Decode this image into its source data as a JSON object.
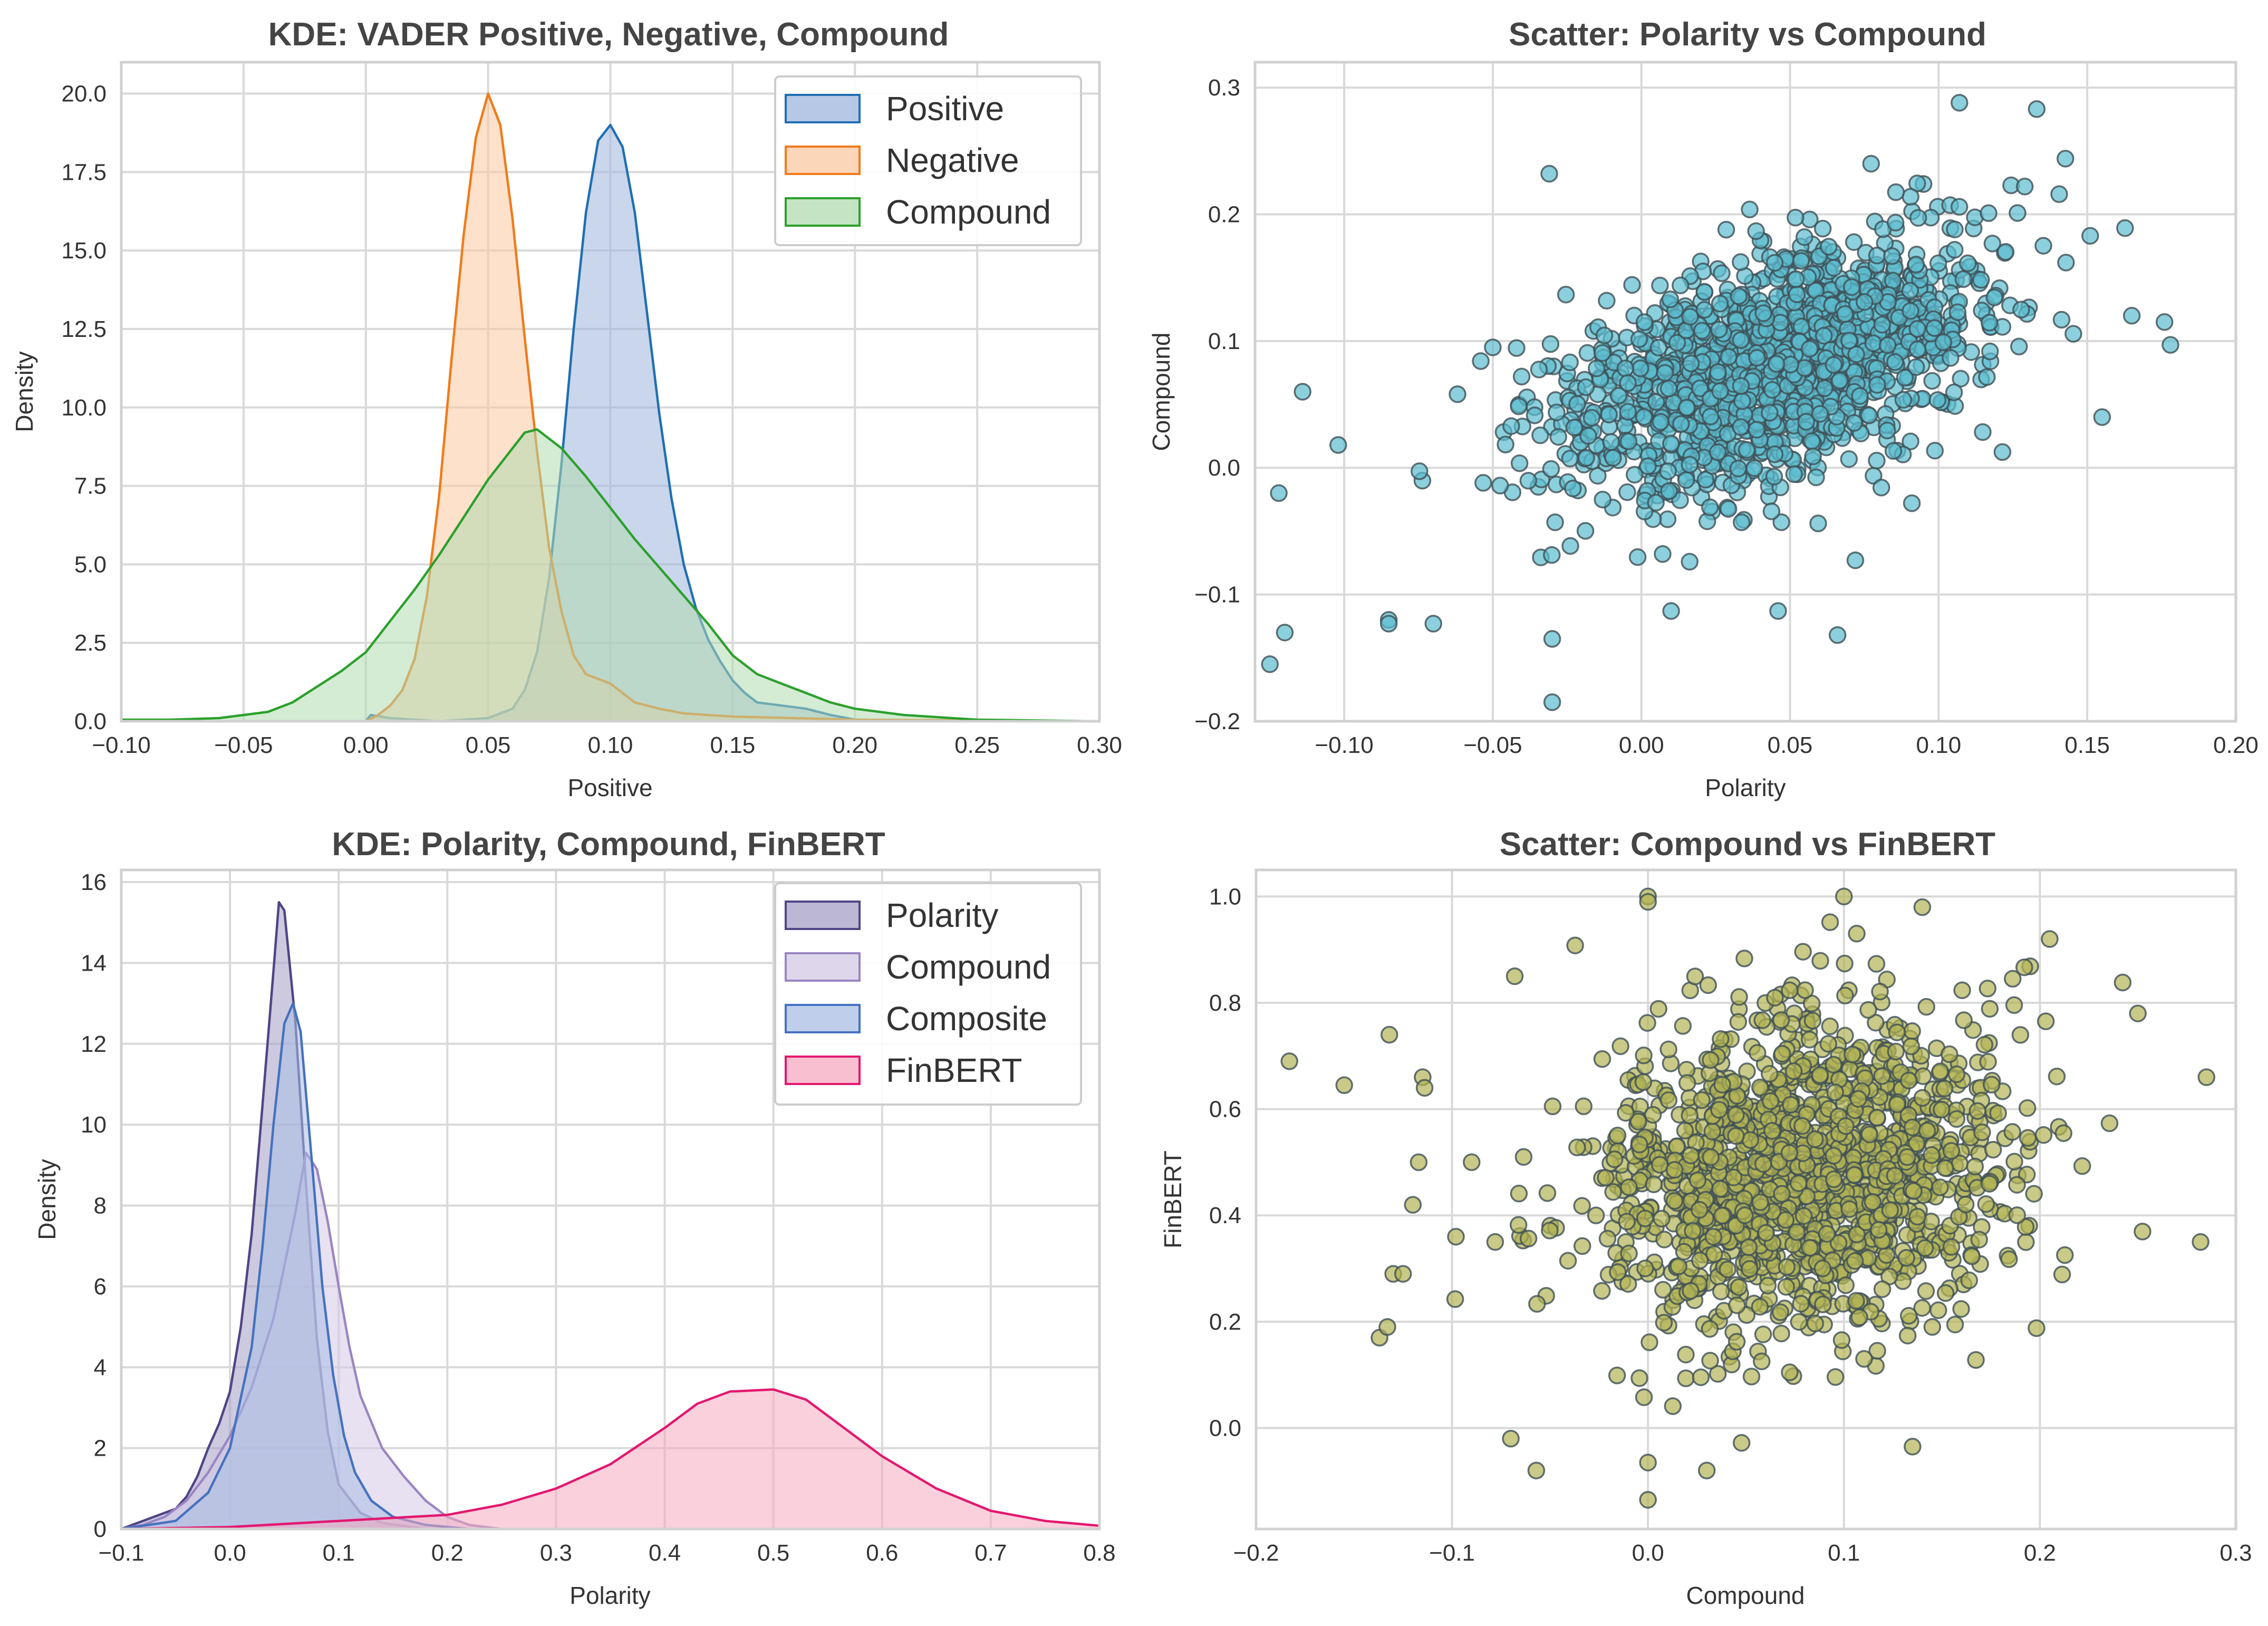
{
  "chart_data": [
    {
      "type": "area",
      "kind": "kde",
      "title": "KDE: VADER Positive, Negative, Compound",
      "xlabel": "Positive",
      "ylabel": "Density",
      "xlim": [
        -0.1,
        0.3
      ],
      "ylim": [
        0,
        21
      ],
      "xticks": [
        -0.1,
        -0.05,
        0.0,
        0.05,
        0.1,
        0.15,
        0.2,
        0.25,
        0.3
      ],
      "xtick_labels": [
        "−0.10",
        "−0.05",
        "0.00",
        "0.05",
        "0.10",
        "0.15",
        "0.20",
        "0.25",
        "0.30"
      ],
      "yticks": [
        0,
        2.5,
        5,
        7.5,
        10,
        12.5,
        15,
        17.5,
        20
      ],
      "ytick_labels": [
        "0.0",
        "2.5",
        "5.0",
        "7.5",
        "10.0",
        "12.5",
        "15.0",
        "17.5",
        "20.0"
      ],
      "grid": true,
      "legend_position": "top-right",
      "series": [
        {
          "name": "Positive",
          "color": "#1f6fb4",
          "fill": "#9fb5dd",
          "points": [
            [
              -0.1,
              0
            ],
            [
              0,
              0
            ],
            [
              0.002,
              0.2
            ],
            [
              0.01,
              0.1
            ],
            [
              0.03,
              0
            ],
            [
              0.05,
              0.1
            ],
            [
              0.06,
              0.4
            ],
            [
              0.065,
              1.0
            ],
            [
              0.07,
              2.2
            ],
            [
              0.075,
              4.6
            ],
            [
              0.08,
              8.2
            ],
            [
              0.085,
              12.5
            ],
            [
              0.09,
              16.2
            ],
            [
              0.095,
              18.5
            ],
            [
              0.1,
              19.0
            ],
            [
              0.105,
              18.3
            ],
            [
              0.11,
              16.2
            ],
            [
              0.115,
              13.0
            ],
            [
              0.12,
              9.8
            ],
            [
              0.125,
              7.1
            ],
            [
              0.13,
              5.0
            ],
            [
              0.135,
              3.6
            ],
            [
              0.14,
              2.6
            ],
            [
              0.145,
              1.9
            ],
            [
              0.15,
              1.3
            ],
            [
              0.155,
              0.9
            ],
            [
              0.16,
              0.6
            ],
            [
              0.17,
              0.5
            ],
            [
              0.18,
              0.4
            ],
            [
              0.19,
              0.2
            ],
            [
              0.2,
              0.05
            ],
            [
              0.3,
              0
            ]
          ]
        },
        {
          "name": "Negative",
          "color": "#ef7b1a",
          "fill": "#fbc8a0",
          "points": [
            [
              -0.1,
              0
            ],
            [
              0.0,
              0
            ],
            [
              0.005,
              0.2
            ],
            [
              0.01,
              0.5
            ],
            [
              0.015,
              1.0
            ],
            [
              0.02,
              2.0
            ],
            [
              0.025,
              4.0
            ],
            [
              0.03,
              7.2
            ],
            [
              0.035,
              11.5
            ],
            [
              0.04,
              15.5
            ],
            [
              0.045,
              18.6
            ],
            [
              0.05,
              20.0
            ],
            [
              0.055,
              19.0
            ],
            [
              0.06,
              16.0
            ],
            [
              0.065,
              12.2
            ],
            [
              0.07,
              8.6
            ],
            [
              0.075,
              5.5
            ],
            [
              0.08,
              3.5
            ],
            [
              0.085,
              2.1
            ],
            [
              0.09,
              1.5
            ],
            [
              0.1,
              1.2
            ],
            [
              0.11,
              0.6
            ],
            [
              0.12,
              0.4
            ],
            [
              0.13,
              0.25
            ],
            [
              0.15,
              0.15
            ],
            [
              0.2,
              0.05
            ],
            [
              0.3,
              0
            ]
          ]
        },
        {
          "name": "Compound",
          "color": "#2ca02c",
          "fill": "#b1dbb0",
          "points": [
            [
              -0.1,
              0.05
            ],
            [
              -0.08,
              0.05
            ],
            [
              -0.06,
              0.1
            ],
            [
              -0.05,
              0.2
            ],
            [
              -0.04,
              0.3
            ],
            [
              -0.03,
              0.6
            ],
            [
              -0.02,
              1.1
            ],
            [
              -0.01,
              1.6
            ],
            [
              0,
              2.2
            ],
            [
              0.01,
              3.2
            ],
            [
              0.02,
              4.2
            ],
            [
              0.03,
              5.3
            ],
            [
              0.04,
              6.5
            ],
            [
              0.05,
              7.7
            ],
            [
              0.06,
              8.7
            ],
            [
              0.065,
              9.2
            ],
            [
              0.07,
              9.3
            ],
            [
              0.08,
              8.7
            ],
            [
              0.09,
              7.8
            ],
            [
              0.1,
              6.8
            ],
            [
              0.11,
              5.8
            ],
            [
              0.12,
              4.9
            ],
            [
              0.13,
              4.0
            ],
            [
              0.14,
              3.1
            ],
            [
              0.15,
              2.1
            ],
            [
              0.16,
              1.5
            ],
            [
              0.17,
              1.2
            ],
            [
              0.18,
              0.9
            ],
            [
              0.19,
              0.6
            ],
            [
              0.2,
              0.4
            ],
            [
              0.22,
              0.2
            ],
            [
              0.25,
              0.05
            ],
            [
              0.3,
              0
            ]
          ]
        }
      ]
    },
    {
      "type": "scatter",
      "title": "Scatter: Polarity vs Compound",
      "xlabel": "Polarity",
      "ylabel": "Compound",
      "xlim": [
        -0.13,
        0.2
      ],
      "ylim": [
        -0.2,
        0.32
      ],
      "xticks": [
        -0.1,
        -0.05,
        0.0,
        0.05,
        0.1,
        0.15,
        0.2
      ],
      "xtick_labels": [
        "−0.10",
        "−0.05",
        "0.00",
        "0.05",
        "0.10",
        "0.15",
        "0.20"
      ],
      "yticks": [
        -0.2,
        -0.1,
        0.0,
        0.1,
        0.2,
        0.3
      ],
      "ytick_labels": [
        "−0.2",
        "−0.1",
        "0.0",
        "0.1",
        "0.2",
        "0.3"
      ],
      "grid": true,
      "point_color": "#5bbccf",
      "point_count": 1500,
      "cluster": {
        "x_mean": 0.045,
        "x_sd": 0.035,
        "y_mean": 0.08,
        "y_sd": 0.05,
        "corr": 0.5
      },
      "outliers": [
        [
          -0.125,
          -0.155
        ],
        [
          -0.12,
          -0.13
        ],
        [
          -0.122,
          -0.02
        ],
        [
          -0.114,
          0.06
        ],
        [
          -0.102,
          0.018
        ],
        [
          -0.085,
          -0.12
        ],
        [
          -0.085,
          -0.123
        ],
        [
          -0.07,
          -0.123
        ],
        [
          -0.031,
          0.232
        ],
        [
          -0.03,
          -0.185
        ],
        [
          -0.03,
          -0.135
        ],
        [
          -0.05,
          0.095
        ],
        [
          0.107,
          0.288
        ],
        [
          0.133,
          0.283
        ],
        [
          0.178,
          0.097
        ],
        [
          0.176,
          0.115
        ],
        [
          0.155,
          0.04
        ],
        [
          0.151,
          0.183
        ],
        [
          0.165,
          0.12
        ],
        [
          0.066,
          -0.132
        ],
        [
          0.01,
          -0.113
        ],
        [
          0.046,
          -0.113
        ],
        [
          0.072,
          -0.073
        ],
        [
          0.091,
          -0.028
        ]
      ]
    },
    {
      "type": "area",
      "kind": "kde",
      "title": "KDE: Polarity, Compound, FinBERT",
      "xlabel": "Polarity",
      "ylabel": "Density",
      "xlim": [
        -0.1,
        0.8
      ],
      "ylim": [
        0,
        16.3
      ],
      "xticks": [
        -0.1,
        0.0,
        0.1,
        0.2,
        0.3,
        0.4,
        0.5,
        0.6,
        0.7,
        0.8
      ],
      "xtick_labels": [
        "−0.1",
        "0.0",
        "0.1",
        "0.2",
        "0.3",
        "0.4",
        "0.5",
        "0.6",
        "0.7",
        "0.8"
      ],
      "yticks": [
        0,
        2,
        4,
        6,
        8,
        10,
        12,
        14,
        16
      ],
      "ytick_labels": [
        "0",
        "2",
        "4",
        "6",
        "8",
        "10",
        "12",
        "14",
        "16"
      ],
      "grid": true,
      "legend_position": "top-right",
      "series": [
        {
          "name": "Polarity",
          "color": "#4f4585",
          "fill": "#a49fc6",
          "points": [
            [
              -0.1,
              0
            ],
            [
              -0.09,
              0.1
            ],
            [
              -0.07,
              0.3
            ],
            [
              -0.05,
              0.5
            ],
            [
              -0.04,
              0.8
            ],
            [
              -0.03,
              1.3
            ],
            [
              -0.02,
              2.0
            ],
            [
              -0.01,
              2.6
            ],
            [
              0,
              3.4
            ],
            [
              0.01,
              5.0
            ],
            [
              0.02,
              7.3
            ],
            [
              0.03,
              10.5
            ],
            [
              0.04,
              13.8
            ],
            [
              0.045,
              15.5
            ],
            [
              0.05,
              15.3
            ],
            [
              0.06,
              12.6
            ],
            [
              0.07,
              8.5
            ],
            [
              0.08,
              4.7
            ],
            [
              0.09,
              2.4
            ],
            [
              0.1,
              1.1
            ],
            [
              0.12,
              0.4
            ],
            [
              0.14,
              0.15
            ],
            [
              0.18,
              0
            ],
            [
              0.8,
              0
            ]
          ]
        },
        {
          "name": "Compound",
          "color": "#9a85c2",
          "fill": "#d3c9e6",
          "points": [
            [
              -0.1,
              0
            ],
            [
              -0.08,
              0.1
            ],
            [
              -0.06,
              0.3
            ],
            [
              -0.04,
              0.7
            ],
            [
              -0.02,
              1.4
            ],
            [
              0,
              2.3
            ],
            [
              0.02,
              3.5
            ],
            [
              0.04,
              5.2
            ],
            [
              0.06,
              7.8
            ],
            [
              0.07,
              9.3
            ],
            [
              0.08,
              8.9
            ],
            [
              0.09,
              7.6
            ],
            [
              0.1,
              6.0
            ],
            [
              0.11,
              4.5
            ],
            [
              0.12,
              3.3
            ],
            [
              0.14,
              2.0
            ],
            [
              0.16,
              1.3
            ],
            [
              0.18,
              0.7
            ],
            [
              0.2,
              0.3
            ],
            [
              0.22,
              0.1
            ],
            [
              0.25,
              0
            ],
            [
              0.8,
              0
            ]
          ]
        },
        {
          "name": "Composite",
          "color": "#4572bf",
          "fill": "#a9bde3",
          "points": [
            [
              -0.1,
              0
            ],
            [
              -0.05,
              0.2
            ],
            [
              -0.02,
              0.9
            ],
            [
              0,
              2.0
            ],
            [
              0.02,
              4.5
            ],
            [
              0.03,
              7.0
            ],
            [
              0.04,
              10.0
            ],
            [
              0.05,
              12.5
            ],
            [
              0.058,
              13.0
            ],
            [
              0.065,
              12.3
            ],
            [
              0.075,
              9.2
            ],
            [
              0.085,
              6.0
            ],
            [
              0.095,
              3.8
            ],
            [
              0.105,
              2.3
            ],
            [
              0.115,
              1.4
            ],
            [
              0.13,
              0.7
            ],
            [
              0.15,
              0.3
            ],
            [
              0.18,
              0.1
            ],
            [
              0.22,
              0
            ],
            [
              0.8,
              0
            ]
          ]
        },
        {
          "name": "FinBERT",
          "color": "#e2186f",
          "fill": "#f5a9c0",
          "points": [
            [
              -0.1,
              0
            ],
            [
              0,
              0.05
            ],
            [
              0.1,
              0.2
            ],
            [
              0.2,
              0.35
            ],
            [
              0.25,
              0.6
            ],
            [
              0.3,
              1.0
            ],
            [
              0.35,
              1.6
            ],
            [
              0.4,
              2.5
            ],
            [
              0.43,
              3.1
            ],
            [
              0.46,
              3.4
            ],
            [
              0.5,
              3.45
            ],
            [
              0.53,
              3.2
            ],
            [
              0.56,
              2.6
            ],
            [
              0.6,
              1.8
            ],
            [
              0.65,
              1.0
            ],
            [
              0.7,
              0.45
            ],
            [
              0.75,
              0.2
            ],
            [
              0.8,
              0.08
            ]
          ]
        }
      ]
    },
    {
      "type": "scatter",
      "title": "Scatter: Compound vs FinBERT",
      "xlabel": "Compound",
      "ylabel": "FinBERT",
      "xlim": [
        -0.2,
        0.3
      ],
      "ylim": [
        -0.19,
        1.05
      ],
      "xticks": [
        -0.2,
        -0.1,
        0.0,
        0.1,
        0.2,
        0.3
      ],
      "xtick_labels": [
        "−0.2",
        "−0.1",
        "0.0",
        "0.1",
        "0.2",
        "0.3"
      ],
      "yticks": [
        0.0,
        0.2,
        0.4,
        0.6,
        0.8,
        1.0
      ],
      "ytick_labels": [
        "0.0",
        "0.2",
        "0.4",
        "0.6",
        "0.8",
        "1.0"
      ],
      "grid": true,
      "point_color": "#b2b354",
      "point_count": 1500,
      "cluster": {
        "x_mean": 0.08,
        "x_sd": 0.05,
        "y_mean": 0.47,
        "y_sd": 0.15,
        "corr": 0.15
      },
      "outliers": [
        [
          -0.183,
          0.69
        ],
        [
          -0.155,
          0.645
        ],
        [
          -0.132,
          0.74
        ],
        [
          -0.115,
          0.66
        ],
        [
          -0.114,
          0.64
        ],
        [
          -0.13,
          0.29
        ],
        [
          -0.125,
          0.29
        ],
        [
          -0.137,
          0.17
        ],
        [
          -0.133,
          0.19
        ],
        [
          -0.12,
          0.42
        ],
        [
          -0.117,
          0.5
        ],
        [
          -0.098,
          0.36
        ],
        [
          -0.078,
          0.35
        ],
        [
          -0.07,
          -0.02
        ],
        [
          -0.057,
          -0.08
        ],
        [
          -0.068,
          0.85
        ],
        [
          0.0,
          1.0
        ],
        [
          0.0,
          0.99
        ],
        [
          0.1,
          1.0
        ],
        [
          0.14,
          0.98
        ],
        [
          0.205,
          0.92
        ],
        [
          0.25,
          0.78
        ],
        [
          0.285,
          0.66
        ],
        [
          0.282,
          0.35
        ],
        [
          0.0,
          -0.135
        ],
        [
          0.0,
          -0.065
        ],
        [
          0.135,
          -0.035
        ],
        [
          0.03,
          -0.08
        ],
        [
          -0.09,
          0.5
        ]
      ]
    }
  ]
}
